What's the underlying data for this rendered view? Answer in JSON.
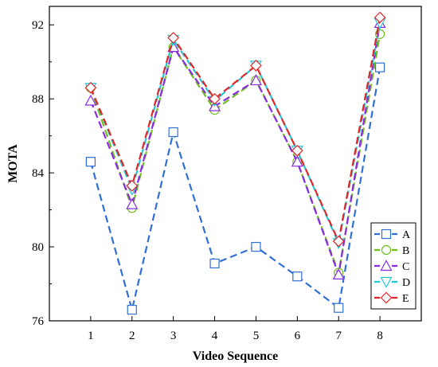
{
  "chart_data": {
    "type": "line",
    "title": "",
    "xlabel": "Video Sequence",
    "ylabel": "MOTA",
    "x": [
      1,
      2,
      3,
      4,
      5,
      6,
      7,
      8
    ],
    "xlim": [
      0,
      9
    ],
    "ylim": [
      76,
      93
    ],
    "yticks": [
      76,
      80,
      84,
      88,
      92
    ],
    "grid": false,
    "legend_position": "bottom-right",
    "series": [
      {
        "name": "A",
        "marker": "square",
        "color": "#2f6fd6",
        "values": [
          84.6,
          76.6,
          86.2,
          79.1,
          80.0,
          78.4,
          76.7,
          89.7
        ]
      },
      {
        "name": "B",
        "marker": "circle",
        "color": "#6fbf1e",
        "values": [
          88.6,
          82.1,
          90.8,
          87.4,
          89.0,
          84.6,
          78.6,
          91.5
        ]
      },
      {
        "name": "C",
        "marker": "triangle-up",
        "color": "#8a2be2",
        "values": [
          87.9,
          82.3,
          90.8,
          87.6,
          89.0,
          84.6,
          78.5,
          92.1
        ]
      },
      {
        "name": "D",
        "marker": "triangle-down",
        "color": "#22c7d8",
        "values": [
          88.6,
          83.1,
          91.2,
          87.9,
          89.8,
          85.2,
          80.2,
          92.1
        ]
      },
      {
        "name": "E",
        "marker": "diamond",
        "color": "#e02626",
        "values": [
          88.6,
          83.3,
          91.3,
          88.0,
          89.8,
          85.2,
          80.3,
          92.4
        ]
      }
    ]
  }
}
